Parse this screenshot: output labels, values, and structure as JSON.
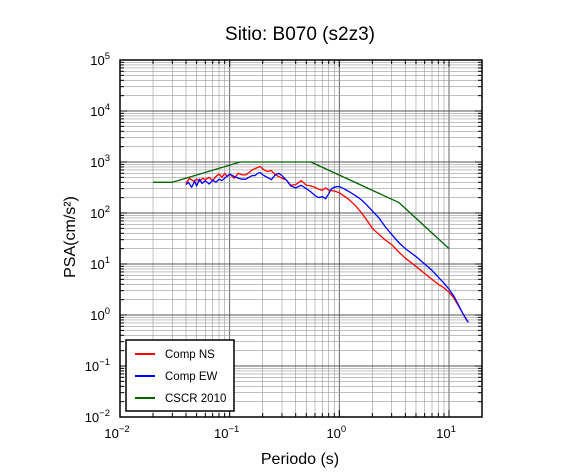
{
  "chart_data": {
    "type": "line",
    "title": "Sitio: B070 (s2z3)",
    "xlabel": "Periodo (s)",
    "ylabel": "PSA(cm/s²)",
    "x_scale": "log",
    "y_scale": "log",
    "xlim": [
      0.01,
      20
    ],
    "ylim": [
      0.01,
      100000
    ],
    "x_ticks": [
      {
        "value": 0.01,
        "base": "10",
        "exp": "−2"
      },
      {
        "value": 0.1,
        "base": "10",
        "exp": "−1"
      },
      {
        "value": 1,
        "base": "10",
        "exp": "0"
      },
      {
        "value": 10,
        "base": "10",
        "exp": "1"
      }
    ],
    "y_ticks": [
      {
        "value": 0.01,
        "base": "10",
        "exp": "−2"
      },
      {
        "value": 0.1,
        "base": "10",
        "exp": "−1"
      },
      {
        "value": 1,
        "base": "10",
        "exp": "0"
      },
      {
        "value": 10,
        "base": "10",
        "exp": "1"
      },
      {
        "value": 100,
        "base": "10",
        "exp": "2"
      },
      {
        "value": 1000,
        "base": "10",
        "exp": "3"
      },
      {
        "value": 10000,
        "base": "10",
        "exp": "4"
      },
      {
        "value": 100000,
        "base": "10",
        "exp": "5"
      }
    ],
    "grid": true,
    "legend_position": "bottom-left",
    "series": [
      {
        "name": "Comp NS",
        "color": "#ff0000",
        "points": [
          [
            0.04,
            380
          ],
          [
            0.043,
            480
          ],
          [
            0.047,
            420
          ],
          [
            0.05,
            460
          ],
          [
            0.053,
            420
          ],
          [
            0.057,
            480
          ],
          [
            0.06,
            450
          ],
          [
            0.065,
            500
          ],
          [
            0.07,
            430
          ],
          [
            0.075,
            520
          ],
          [
            0.08,
            580
          ],
          [
            0.085,
            500
          ],
          [
            0.09,
            600
          ],
          [
            0.095,
            520
          ],
          [
            0.1,
            580
          ],
          [
            0.11,
            480
          ],
          [
            0.12,
            600
          ],
          [
            0.13,
            560
          ],
          [
            0.14,
            560
          ],
          [
            0.15,
            620
          ],
          [
            0.16,
            700
          ],
          [
            0.17,
            740
          ],
          [
            0.18,
            780
          ],
          [
            0.19,
            820
          ],
          [
            0.2,
            730
          ],
          [
            0.22,
            650
          ],
          [
            0.24,
            680
          ],
          [
            0.26,
            560
          ],
          [
            0.28,
            520
          ],
          [
            0.3,
            480
          ],
          [
            0.33,
            440
          ],
          [
            0.36,
            350
          ],
          [
            0.4,
            360
          ],
          [
            0.45,
            430
          ],
          [
            0.5,
            350
          ],
          [
            0.55,
            340
          ],
          [
            0.6,
            320
          ],
          [
            0.65,
            290
          ],
          [
            0.7,
            280
          ],
          [
            0.75,
            310
          ],
          [
            0.8,
            280
          ],
          [
            0.9,
            270
          ],
          [
            1.0,
            250
          ],
          [
            1.2,
            190
          ],
          [
            1.4,
            140
          ],
          [
            1.6,
            100
          ],
          [
            1.8,
            70
          ],
          [
            2.0,
            50
          ],
          [
            2.3,
            38
          ],
          [
            2.6,
            30
          ],
          [
            3.0,
            24
          ],
          [
            3.5,
            17
          ],
          [
            4.0,
            13
          ],
          [
            5.0,
            9
          ],
          [
            6.0,
            6.5
          ],
          [
            7.0,
            5
          ],
          [
            8.0,
            4
          ],
          [
            9.0,
            3.4
          ],
          [
            10.0,
            2.8
          ],
          [
            11.0,
            2.2
          ],
          [
            12.0,
            1.6
          ],
          [
            13.0,
            1.2
          ],
          [
            14.0,
            0.9
          ],
          [
            15.0,
            0.72
          ]
        ]
      },
      {
        "name": "Comp EW",
        "color": "#0000ff",
        "points": [
          [
            0.04,
            360
          ],
          [
            0.042,
            400
          ],
          [
            0.045,
            320
          ],
          [
            0.048,
            420
          ],
          [
            0.05,
            340
          ],
          [
            0.053,
            460
          ],
          [
            0.056,
            380
          ],
          [
            0.06,
            430
          ],
          [
            0.065,
            370
          ],
          [
            0.07,
            440
          ],
          [
            0.075,
            400
          ],
          [
            0.08,
            460
          ],
          [
            0.085,
            430
          ],
          [
            0.09,
            480
          ],
          [
            0.1,
            580
          ],
          [
            0.11,
            520
          ],
          [
            0.12,
            480
          ],
          [
            0.13,
            460
          ],
          [
            0.14,
            460
          ],
          [
            0.15,
            500
          ],
          [
            0.16,
            540
          ],
          [
            0.17,
            540
          ],
          [
            0.18,
            600
          ],
          [
            0.19,
            620
          ],
          [
            0.2,
            560
          ],
          [
            0.22,
            500
          ],
          [
            0.24,
            450
          ],
          [
            0.26,
            560
          ],
          [
            0.28,
            600
          ],
          [
            0.3,
            540
          ],
          [
            0.33,
            440
          ],
          [
            0.36,
            340
          ],
          [
            0.4,
            310
          ],
          [
            0.45,
            350
          ],
          [
            0.5,
            300
          ],
          [
            0.55,
            260
          ],
          [
            0.6,
            220
          ],
          [
            0.65,
            200
          ],
          [
            0.7,
            210
          ],
          [
            0.75,
            190
          ],
          [
            0.8,
            240
          ],
          [
            0.85,
            300
          ],
          [
            0.9,
            320
          ],
          [
            0.95,
            330
          ],
          [
            1.0,
            330
          ],
          [
            1.1,
            300
          ],
          [
            1.2,
            270
          ],
          [
            1.4,
            220
          ],
          [
            1.6,
            180
          ],
          [
            1.8,
            140
          ],
          [
            2.0,
            110
          ],
          [
            2.3,
            80
          ],
          [
            2.6,
            55
          ],
          [
            3.0,
            38
          ],
          [
            3.5,
            26
          ],
          [
            4.0,
            20
          ],
          [
            5.0,
            14
          ],
          [
            6.0,
            10
          ],
          [
            7.0,
            7.5
          ],
          [
            8.0,
            5.5
          ],
          [
            9.0,
            4.2
          ],
          [
            10.0,
            3.2
          ],
          [
            11.0,
            2.4
          ],
          [
            12.0,
            1.7
          ],
          [
            13.0,
            1.2
          ],
          [
            14.0,
            0.9
          ],
          [
            15.0,
            0.72
          ]
        ]
      },
      {
        "name": "CSCR 2010",
        "color": "#006400",
        "points": [
          [
            0.02,
            400
          ],
          [
            0.03,
            400
          ],
          [
            0.125,
            1000
          ],
          [
            0.55,
            1000
          ],
          [
            3.5,
            160
          ],
          [
            10.0,
            20
          ]
        ]
      }
    ]
  }
}
